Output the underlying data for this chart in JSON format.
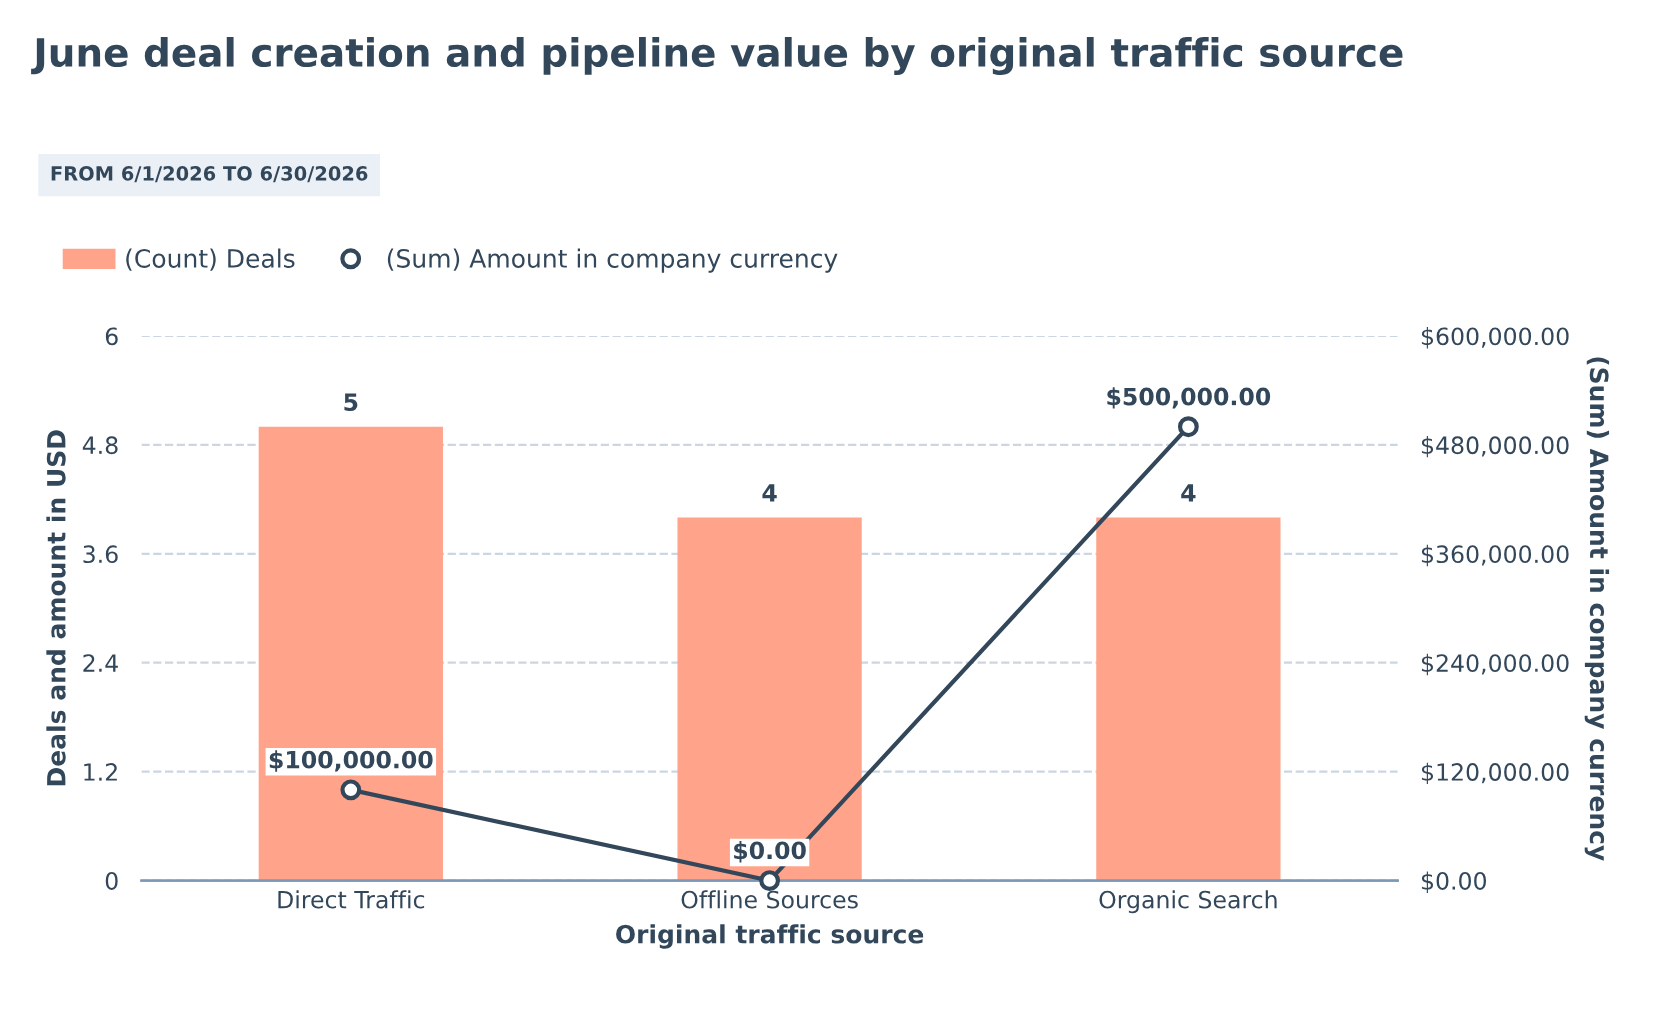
{
  "chart_data": {
    "type": "bar",
    "title": "June deal creation and pipeline value by original traffic source",
    "subtitle": "FROM 6/1/2026 TO 6/30/2026",
    "xlabel": "Original traffic source",
    "ylabel": "Deals and amount in USD",
    "y2label": "(Sum) Amount in company currency",
    "categories": [
      "Direct Traffic",
      "Offline Sources",
      "Organic Search"
    ],
    "series": [
      {
        "name": "(Count) Deals",
        "color": "#ffa38b",
        "values": [
          5,
          4,
          4
        ],
        "value_labels": [
          "5",
          "4",
          "4"
        ]
      },
      {
        "name": "(Sum) Amount in company currency",
        "type": "line",
        "axis": "y2",
        "color": "#33475b",
        "marker": "circle",
        "values": [
          100000,
          0,
          500000
        ],
        "value_labels": [
          "$100,000.00",
          "$0.00",
          "$500,000.00"
        ]
      }
    ],
    "ylim": [
      0,
      6
    ],
    "yticks": [
      0,
      1.2,
      2.4,
      3.6,
      4.8,
      6
    ],
    "y2lim": [
      0,
      600000
    ],
    "y2ticks": [
      {
        "value": 0,
        "label": "$0.00"
      },
      {
        "value": 120000,
        "label": "$120,000.00"
      },
      {
        "value": 240000,
        "label": "$240,000.00"
      },
      {
        "value": 360000,
        "label": "$360,000.00"
      },
      {
        "value": 480000,
        "label": "$480,000.00"
      },
      {
        "value": 600000,
        "label": "$600,000.00"
      }
    ],
    "grid": "y",
    "legend": "top left"
  }
}
